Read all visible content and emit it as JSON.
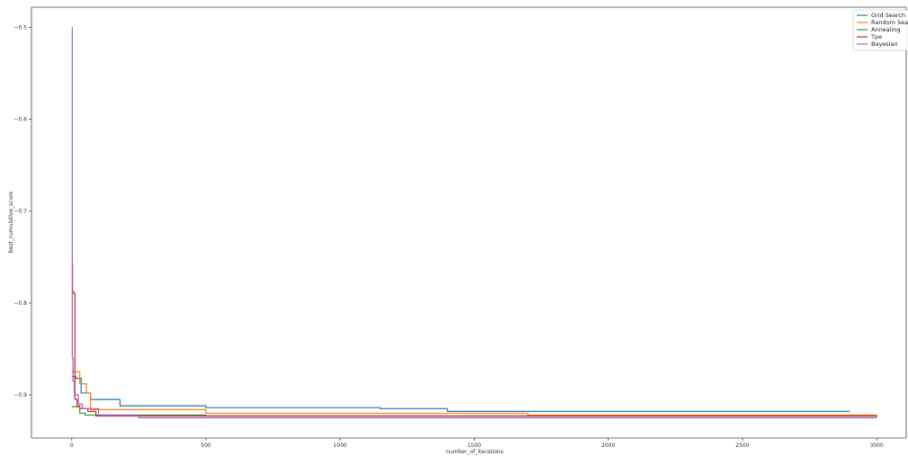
{
  "chart_data": {
    "type": "line",
    "title": "",
    "xlabel": "number_of_iterations",
    "ylabel": "best_cumulative_score",
    "xlim": [
      -150,
      3110
    ],
    "ylim": [
      -0.947,
      -0.478
    ],
    "xticks": [
      0,
      500,
      1000,
      1500,
      2000,
      2500,
      3000
    ],
    "yticks": [
      -0.5,
      -0.6,
      -0.7,
      -0.8,
      -0.9
    ],
    "grid": false,
    "legend_position": "top-right",
    "series": [
      {
        "name": "Grid Search",
        "color": "#1f77b4",
        "step": true,
        "points": [
          [
            0,
            -0.88
          ],
          [
            15,
            -0.882
          ],
          [
            35,
            -0.898
          ],
          [
            70,
            -0.905
          ],
          [
            180,
            -0.912
          ],
          [
            500,
            -0.914
          ],
          [
            1150,
            -0.915
          ],
          [
            1400,
            -0.918
          ],
          [
            2900,
            -0.918
          ]
        ]
      },
      {
        "name": "Random Search",
        "color": "#ff7f0e",
        "step": true,
        "points": [
          [
            0,
            -0.875
          ],
          [
            30,
            -0.888
          ],
          [
            55,
            -0.898
          ],
          [
            70,
            -0.916
          ],
          [
            500,
            -0.92
          ],
          [
            1700,
            -0.922
          ],
          [
            3000,
            -0.922
          ]
        ]
      },
      {
        "name": "Annealing",
        "color": "#2ca02c",
        "step": true,
        "points": [
          [
            0,
            -0.913
          ],
          [
            30,
            -0.92
          ],
          [
            50,
            -0.922
          ],
          [
            500,
            -0.923
          ],
          [
            3000,
            -0.924
          ]
        ]
      },
      {
        "name": "Tpe",
        "color": "#d62728",
        "step": true,
        "points": [
          [
            0,
            -0.758
          ],
          [
            3,
            -0.788
          ],
          [
            8,
            -0.79
          ],
          [
            12,
            -0.905
          ],
          [
            20,
            -0.912
          ],
          [
            30,
            -0.915
          ],
          [
            60,
            -0.918
          ],
          [
            90,
            -0.923
          ],
          [
            3000,
            -0.924
          ]
        ]
      },
      {
        "name": "Bayesian",
        "color": "#9467bd",
        "step": true,
        "points": [
          [
            0,
            -0.5
          ],
          [
            2,
            -0.86
          ],
          [
            5,
            -0.885
          ],
          [
            10,
            -0.9
          ],
          [
            25,
            -0.91
          ],
          [
            40,
            -0.915
          ],
          [
            100,
            -0.922
          ],
          [
            250,
            -0.925
          ],
          [
            3000,
            -0.925
          ]
        ]
      }
    ]
  }
}
